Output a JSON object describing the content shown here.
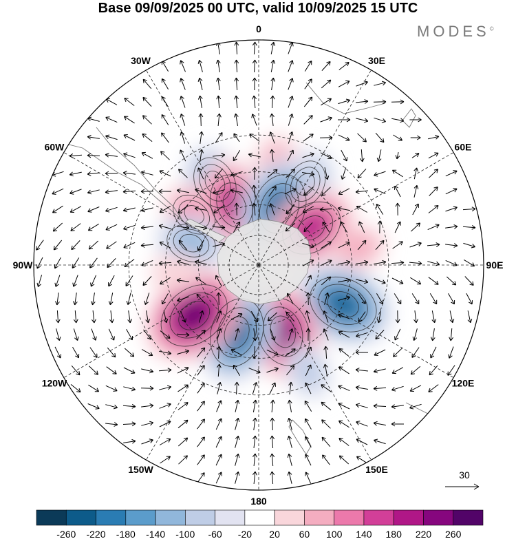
{
  "title": "Base 09/09/2025 00 UTC, valid 10/09/2025 15 UTC",
  "brand": "MODES",
  "brand_mark": "©",
  "map": {
    "projection": "south-polar-stereographic",
    "longitude_labels": [
      {
        "text": "0",
        "lon": 0
      },
      {
        "text": "30E",
        "lon": 30
      },
      {
        "text": "60E",
        "lon": 60
      },
      {
        "text": "90E",
        "lon": 90
      },
      {
        "text": "120E",
        "lon": 120
      },
      {
        "text": "150E",
        "lon": 150
      },
      {
        "text": "180",
        "lon": 180
      },
      {
        "text": "150W",
        "lon": -150
      },
      {
        "text": "120W",
        "lon": -120
      },
      {
        "text": "90W",
        "lon": -90
      },
      {
        "text": "60W",
        "lon": -60
      },
      {
        "text": "30W",
        "lon": -30
      }
    ],
    "latitude_circles": [
      -30,
      -45,
      -60,
      -75
    ],
    "anomaly_centers": [
      {
        "sign": "positive",
        "lon": 10,
        "lat": -42,
        "value": 80
      },
      {
        "sign": "negative",
        "lon": -28,
        "lat": -45,
        "value": -140
      },
      {
        "sign": "negative",
        "lon": 30,
        "lat": -45,
        "value": -120
      },
      {
        "sign": "positive",
        "lon": -52,
        "lat": -50,
        "value": 100
      },
      {
        "sign": "positive",
        "lon": -22,
        "lat": -58,
        "value": 200
      },
      {
        "sign": "negative",
        "lon": 20,
        "lat": -60,
        "value": -240
      },
      {
        "sign": "positive",
        "lon": 55,
        "lat": -58,
        "value": 200
      },
      {
        "sign": "negative",
        "lon": -72,
        "lat": -55,
        "value": -120
      },
      {
        "sign": "positive",
        "lon": 80,
        "lat": -42,
        "value": 60
      },
      {
        "sign": "negative",
        "lon": 115,
        "lat": -45,
        "value": -240
      },
      {
        "sign": "positive",
        "lon": 160,
        "lat": -55,
        "value": 240
      },
      {
        "sign": "negative",
        "lon": -162,
        "lat": -55,
        "value": -240
      },
      {
        "sign": "positive",
        "lon": -128,
        "lat": -50,
        "value": 260
      },
      {
        "sign": "negative",
        "lon": 155,
        "lat": -35,
        "value": -60
      },
      {
        "sign": "positive",
        "lon": -95,
        "lat": -50,
        "value": 40
      }
    ]
  },
  "vector_reference": {
    "label": "30"
  },
  "colorbar": {
    "tick_labels": [
      "-260",
      "-220",
      "-180",
      "-140",
      "-100",
      "-60",
      "-20",
      "20",
      "60",
      "100",
      "140",
      "180",
      "220",
      "260"
    ],
    "colors": [
      "#0b3a58",
      "#0d5b8a",
      "#2a7cb3",
      "#5b9ccb",
      "#91b7db",
      "#bfcde6",
      "#e2e3f1",
      "#ffffff",
      "#f9d6db",
      "#f4adc0",
      "#ec79ab",
      "#d23f98",
      "#b01787",
      "#86067e",
      "#520468"
    ]
  }
}
